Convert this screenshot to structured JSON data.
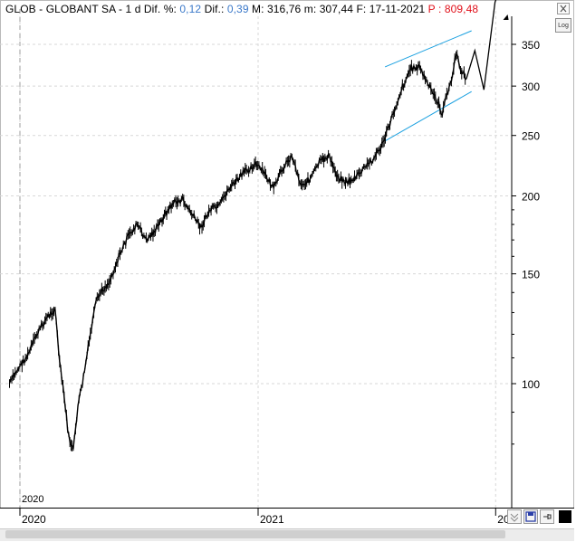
{
  "header": {
    "prefix": "GLOB - GLOBANT SA -  1 d Dif. %: ",
    "dif_pct": "0,12",
    "dif_label": " Dif.: ",
    "dif": "0,39",
    "rest": " M: 316,76  m: 307,44  F: 17-11-2021 ",
    "projection": "P : 809,48"
  },
  "controls": {
    "log_label": "Log",
    "close_icon": "close-icon",
    "zoom_icon": "chevron-zoom-icon",
    "save_icon": "save-icon",
    "pin_icon": "pin-icon"
  },
  "colors": {
    "price": "#000000",
    "channel": "#1aa0e0",
    "grid": "#d7d7d7",
    "projection_label": "#e0101a",
    "accent_blue": "#3b79c9"
  },
  "chart_data": {
    "type": "line",
    "symbol": "GLOB",
    "name": "GLOBANT SA",
    "interval": "1 d",
    "y_scale": "log",
    "ylim": [
      70,
      410
    ],
    "y_ticks": [
      100,
      150,
      200,
      250,
      300,
      350
    ],
    "x_ticks": [
      {
        "label": "2020",
        "date": "2020-01-01"
      },
      {
        "label": "2021",
        "date": "2021-01-01"
      },
      {
        "label": "20",
        "date": "2022-01-01"
      }
    ],
    "inner_year_label": "2020",
    "grid": true,
    "series": [
      {
        "x": [
          "2019-12-16",
          "2019-12-30",
          "2020-01-13",
          "2020-01-27",
          "2020-02-10",
          "2020-02-24",
          "2020-03-02",
          "2020-03-09",
          "2020-03-16",
          "2020-03-23",
          "2020-03-30",
          "2020-04-06",
          "2020-04-20",
          "2020-04-27",
          "2020-05-04",
          "2020-05-18",
          "2020-06-01",
          "2020-06-15",
          "2020-06-29",
          "2020-07-13",
          "2020-07-27",
          "2020-08-10",
          "2020-08-24",
          "2020-09-07",
          "2020-09-21",
          "2020-10-05",
          "2020-10-19",
          "2020-11-02",
          "2020-11-16",
          "2020-11-30",
          "2020-12-14",
          "2020-12-28",
          "2021-01-11",
          "2021-01-25",
          "2021-02-08",
          "2021-02-22",
          "2021-03-08",
          "2021-03-22",
          "2021-04-05",
          "2021-04-19",
          "2021-05-03",
          "2021-05-17",
          "2021-05-31",
          "2021-06-14",
          "2021-06-28",
          "2021-07-12",
          "2021-07-26",
          "2021-08-09",
          "2021-08-23",
          "2021-09-06",
          "2021-09-20",
          "2021-10-04",
          "2021-10-11",
          "2021-10-18",
          "2021-10-25",
          "2021-11-01",
          "2021-11-08",
          "2021-11-17"
        ],
        "values": [
          100,
          106,
          111,
          120,
          127,
          132,
          108,
          95,
          82,
          78,
          92,
          100,
          123,
          135,
          140,
          146,
          160,
          172,
          180,
          170,
          176,
          186,
          195,
          197,
          187,
          178,
          190,
          192,
          205,
          212,
          220,
          225,
          217,
          205,
          222,
          232,
          208,
          213,
          226,
          232,
          215,
          210,
          214,
          222,
          230,
          243,
          268,
          296,
          320,
          322,
          300,
          283,
          270,
          292,
          305,
          338,
          320,
          308
        ]
      },
      {
        "x": [
          "2021-11-17",
          "2021-11-30",
          "2021-12-14",
          "2021-12-31",
          "2022-01-14"
        ],
        "values": [
          308,
          342,
          296,
          409,
          450
        ]
      }
    ],
    "channel_lines": [
      {
        "x": [
          "2021-07-15",
          "2021-11-25"
        ],
        "values": [
          322,
          368
        ]
      },
      {
        "x": [
          "2021-07-15",
          "2021-11-25"
        ],
        "values": [
          245,
          294
        ]
      }
    ]
  }
}
